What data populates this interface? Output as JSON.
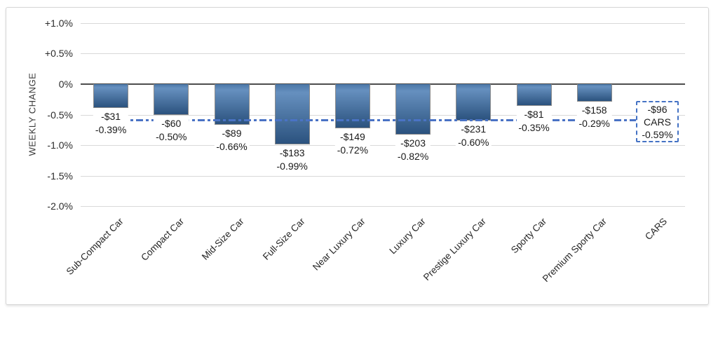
{
  "chart_data": {
    "type": "bar",
    "title": "",
    "xlabel": "",
    "ylabel": "WEEKLY CHANGE",
    "ylim": [
      -2.0,
      1.0
    ],
    "grid": true,
    "legend": false,
    "y_ticks": [
      {
        "label": "+1.0%",
        "value": 1.0
      },
      {
        "label": "+0.5%",
        "value": 0.5
      },
      {
        "label": "0%",
        "value": 0.0
      },
      {
        "label": "-0.5%",
        "value": -0.5
      },
      {
        "label": "-1.0%",
        "value": -1.0
      },
      {
        "label": "-1.5%",
        "value": -1.5
      },
      {
        "label": "-2.0%",
        "value": -2.0
      }
    ],
    "categories": [
      "Sub-Compact Car",
      "Compact Car",
      "Mid-Size Car",
      "Full-Size Car",
      "Near Luxury Car",
      "Luxury Car",
      "Prestige Luxury Car",
      "Sporty Car",
      "Premium Sporty Car",
      "CARS"
    ],
    "bars": [
      {
        "category": "Sub-Compact Car",
        "dollar_label": "-$31",
        "percent_label": "-0.39%",
        "percent": -0.39
      },
      {
        "category": "Compact Car",
        "dollar_label": "-$60",
        "percent_label": "-0.50%",
        "percent": -0.5
      },
      {
        "category": "Mid-Size Car",
        "dollar_label": "-$89",
        "percent_label": "-0.66%",
        "percent": -0.66
      },
      {
        "category": "Full-Size Car",
        "dollar_label": "-$183",
        "percent_label": "-0.99%",
        "percent": -0.99
      },
      {
        "category": "Near Luxury Car",
        "dollar_label": "-$149",
        "percent_label": "-0.72%",
        "percent": -0.72
      },
      {
        "category": "Luxury Car",
        "dollar_label": "-$203",
        "percent_label": "-0.82%",
        "percent": -0.82
      },
      {
        "category": "Prestige Luxury Car",
        "dollar_label": "-$231",
        "percent_label": "-0.60%",
        "percent": -0.6
      },
      {
        "category": "Sporty Car",
        "dollar_label": "-$81",
        "percent_label": "-0.35%",
        "percent": -0.35
      },
      {
        "category": "Premium Sporty Car",
        "dollar_label": "-$158",
        "percent_label": "-0.29%",
        "percent": -0.29
      }
    ],
    "average_line": {
      "category": "CARS",
      "dollar_label": "-$96",
      "name_label": "CARS",
      "percent_label": "-0.59%",
      "percent": -0.59
    }
  },
  "colors": {
    "bar_gradient_top": "#6690bf",
    "bar_gradient_bottom": "#2b527e",
    "bar_border": "#8c8c8c",
    "gridline": "#d9d9d9",
    "zero_line": "#4d4d4d",
    "average_blue": "#4472c4",
    "text": "#1a1a1a"
  }
}
